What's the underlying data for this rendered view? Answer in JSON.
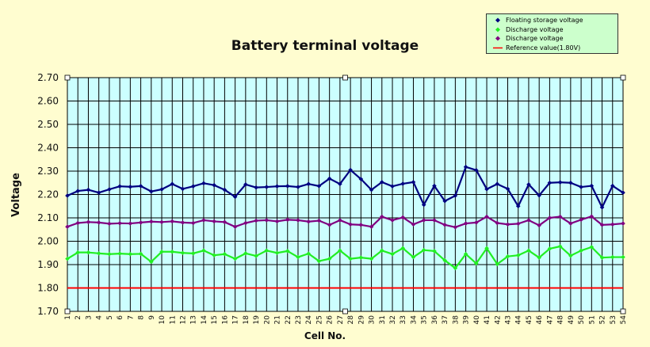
{
  "chart_data": {
    "type": "line",
    "title": "Battery terminal voltage",
    "xlabel": "Cell No.",
    "ylabel": "Voltage",
    "ylim": [
      1.7,
      2.7
    ],
    "yticks": [
      "1.70",
      "1.80",
      "1.90",
      "2.00",
      "2.10",
      "2.20",
      "2.30",
      "2.40",
      "2.50",
      "2.60",
      "2.70"
    ],
    "x": [
      1,
      2,
      3,
      4,
      5,
      6,
      7,
      8,
      9,
      10,
      11,
      12,
      13,
      14,
      15,
      16,
      17,
      18,
      19,
      20,
      21,
      22,
      23,
      24,
      25,
      26,
      27,
      28,
      29,
      30,
      31,
      32,
      33,
      34,
      35,
      36,
      37,
      38,
      39,
      40,
      41,
      42,
      43,
      44,
      45,
      46,
      47,
      48,
      49,
      50,
      51,
      52,
      53,
      54
    ],
    "grid": true,
    "legend_position": "top-right",
    "series": [
      {
        "name": "Floating storage voltage",
        "color": "#000080",
        "marker": "diamond",
        "values": [
          2.195,
          2.215,
          2.22,
          2.208,
          2.222,
          2.235,
          2.233,
          2.236,
          2.213,
          2.222,
          2.245,
          2.224,
          2.235,
          2.248,
          2.24,
          2.22,
          2.19,
          2.243,
          2.23,
          2.232,
          2.235,
          2.236,
          2.232,
          2.245,
          2.236,
          2.268,
          2.245,
          2.305,
          2.266,
          2.22,
          2.253,
          2.235,
          2.246,
          2.253,
          2.156,
          2.237,
          2.172,
          2.195,
          2.318,
          2.304,
          2.223,
          2.245,
          2.224,
          2.15,
          2.243,
          2.196,
          2.25,
          2.252,
          2.25,
          2.232,
          2.237,
          2.145,
          2.237,
          2.208
        ]
      },
      {
        "name": "Discharge voltage",
        "color": "#22ee22",
        "marker": "diamond",
        "values": [
          1.925,
          1.952,
          1.952,
          1.948,
          1.945,
          1.947,
          1.945,
          1.946,
          1.912,
          1.955,
          1.955,
          1.95,
          1.948,
          1.96,
          1.94,
          1.945,
          1.925,
          1.948,
          1.937,
          1.96,
          1.95,
          1.958,
          1.932,
          1.947,
          1.915,
          1.925,
          1.96,
          1.925,
          1.93,
          1.925,
          1.96,
          1.945,
          1.97,
          1.932,
          1.962,
          1.958,
          1.918,
          1.885,
          1.945,
          1.905,
          1.97,
          1.902,
          1.935,
          1.94,
          1.96,
          1.93,
          1.968,
          1.978,
          1.938,
          1.96,
          1.975,
          1.93,
          1.932,
          1.932
        ]
      },
      {
        "name": "Discharge voltage",
        "color": "#800080",
        "marker": "diamond",
        "values": [
          2.062,
          2.078,
          2.082,
          2.08,
          2.075,
          2.077,
          2.076,
          2.08,
          2.084,
          2.082,
          2.085,
          2.08,
          2.078,
          2.09,
          2.085,
          2.082,
          2.062,
          2.078,
          2.088,
          2.09,
          2.085,
          2.092,
          2.09,
          2.084,
          2.088,
          2.07,
          2.09,
          2.072,
          2.07,
          2.062,
          2.105,
          2.09,
          2.102,
          2.072,
          2.09,
          2.09,
          2.07,
          2.06,
          2.076,
          2.08,
          2.105,
          2.078,
          2.072,
          2.075,
          2.09,
          2.068,
          2.1,
          2.105,
          2.076,
          2.092,
          2.106,
          2.07,
          2.072,
          2.076
        ]
      },
      {
        "name": "Reference value(1.80V)",
        "color": "#ff0000",
        "marker": "none",
        "values": [
          1.8,
          1.8,
          1.8,
          1.8,
          1.8,
          1.8,
          1.8,
          1.8,
          1.8,
          1.8,
          1.8,
          1.8,
          1.8,
          1.8,
          1.8,
          1.8,
          1.8,
          1.8,
          1.8,
          1.8,
          1.8,
          1.8,
          1.8,
          1.8,
          1.8,
          1.8,
          1.8,
          1.8,
          1.8,
          1.8,
          1.8,
          1.8,
          1.8,
          1.8,
          1.8,
          1.8,
          1.8,
          1.8,
          1.8,
          1.8,
          1.8,
          1.8,
          1.8,
          1.8,
          1.8,
          1.8,
          1.8,
          1.8,
          1.8,
          1.8,
          1.8,
          1.8,
          1.8,
          1.8
        ]
      }
    ],
    "colors": {
      "plot_background": "#ccffff",
      "page_background": "#fffdd0",
      "legend_background": "#ccffcc"
    }
  },
  "legend": {
    "items": [
      {
        "label": "Floating storage voltage",
        "color": "#000080",
        "marker": "diamond"
      },
      {
        "label": "Discharge voltage",
        "color": "#22ee22",
        "marker": "diamond"
      },
      {
        "label": "Discharge voltage",
        "color": "#800080",
        "marker": "diamond"
      },
      {
        "label": "Reference value(1.80V)",
        "color": "#ff0000",
        "marker": "line"
      }
    ]
  }
}
